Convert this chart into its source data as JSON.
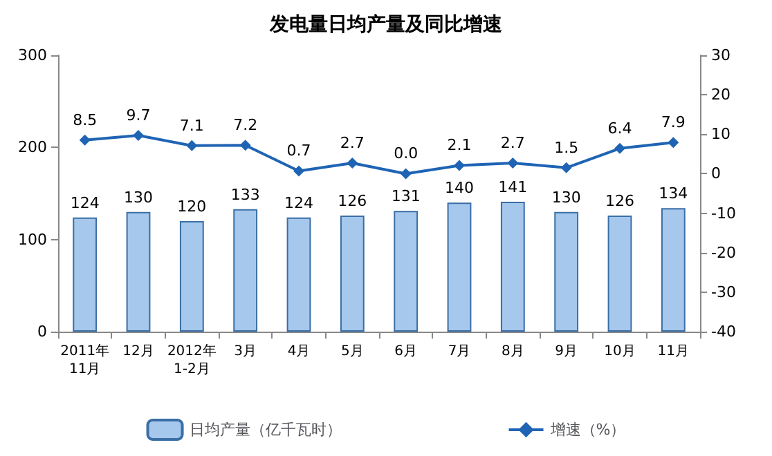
{
  "chart_data": {
    "type": "bar",
    "title": "发电量日均产量及同比增速",
    "categories": [
      "2011年\n11月",
      "12月",
      "2012年\n1-2月",
      "3月",
      "4月",
      "5月",
      "6月",
      "7月",
      "8月",
      "9月",
      "10月",
      "11月"
    ],
    "series": [
      {
        "name": "日均产量（亿千瓦时）",
        "color": "#a6c8ec",
        "values": [
          124,
          130,
          120,
          133,
          124,
          126,
          131,
          140,
          141,
          130,
          126,
          134
        ],
        "value_labels": [
          "124",
          "130",
          "120",
          "133",
          "124",
          "126",
          "131",
          "140",
          "141",
          "130",
          "126",
          "134"
        ]
      },
      {
        "name": "增速（%）",
        "type": "line",
        "axis": "y2",
        "color": "#1f64b4",
        "values": [
          8.5,
          9.7,
          7.1,
          7.2,
          0.7,
          2.7,
          0.0,
          2.1,
          2.7,
          1.5,
          6.4,
          7.9
        ],
        "value_labels": [
          "8.5",
          "9.7",
          "7.1",
          "7.2",
          "0.7",
          "2.7",
          "0.0",
          "2.1",
          "2.7",
          "1.5",
          "6.4",
          "7.9"
        ]
      }
    ],
    "ylim": [
      0,
      300
    ],
    "yticks": [
      0,
      100,
      200,
      300
    ],
    "y2lim": [
      -40,
      30
    ],
    "y2ticks": [
      -40,
      -30,
      -20,
      -10,
      0,
      10,
      20,
      30
    ],
    "grid": false,
    "legend": "bottom",
    "marker": "diamond",
    "line_style": "solid"
  }
}
